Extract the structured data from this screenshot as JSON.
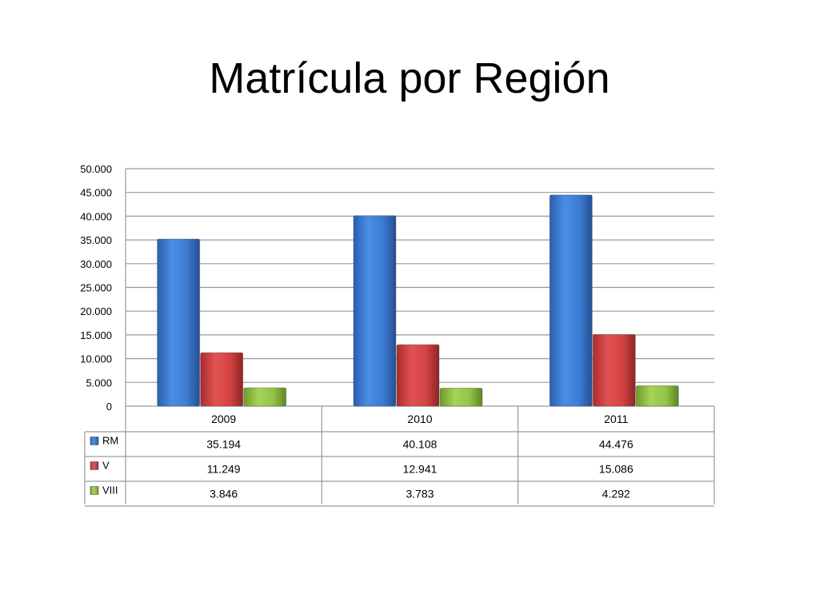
{
  "slide": {
    "title": "Matrícula por Región"
  },
  "chart_data": {
    "type": "bar",
    "title": "",
    "categories": [
      "2009",
      "2010",
      "2011"
    ],
    "y_ticks": [
      "0",
      "5.000",
      "10.000",
      "15.000",
      "20.000",
      "25.000",
      "30.000",
      "35.000",
      "40.000",
      "45.000",
      "50.000"
    ],
    "ylim": [
      0,
      50000
    ],
    "grid": true,
    "legend": "data table below chart",
    "series": [
      {
        "name": "RM",
        "values": [
          35194,
          40108,
          44476
        ],
        "labels": [
          "35.194",
          "40.108",
          "44.476"
        ],
        "color": "#3f7fd6"
      },
      {
        "name": "V",
        "values": [
          11249,
          12941,
          15086
        ],
        "labels": [
          "11.249",
          "12.941",
          "15.086"
        ],
        "color": "#d63f3f"
      },
      {
        "name": "VIII",
        "values": [
          3846,
          3783,
          4292
        ],
        "labels": [
          "3.846",
          "3.783",
          "4.292"
        ],
        "color": "#94c447"
      }
    ]
  }
}
